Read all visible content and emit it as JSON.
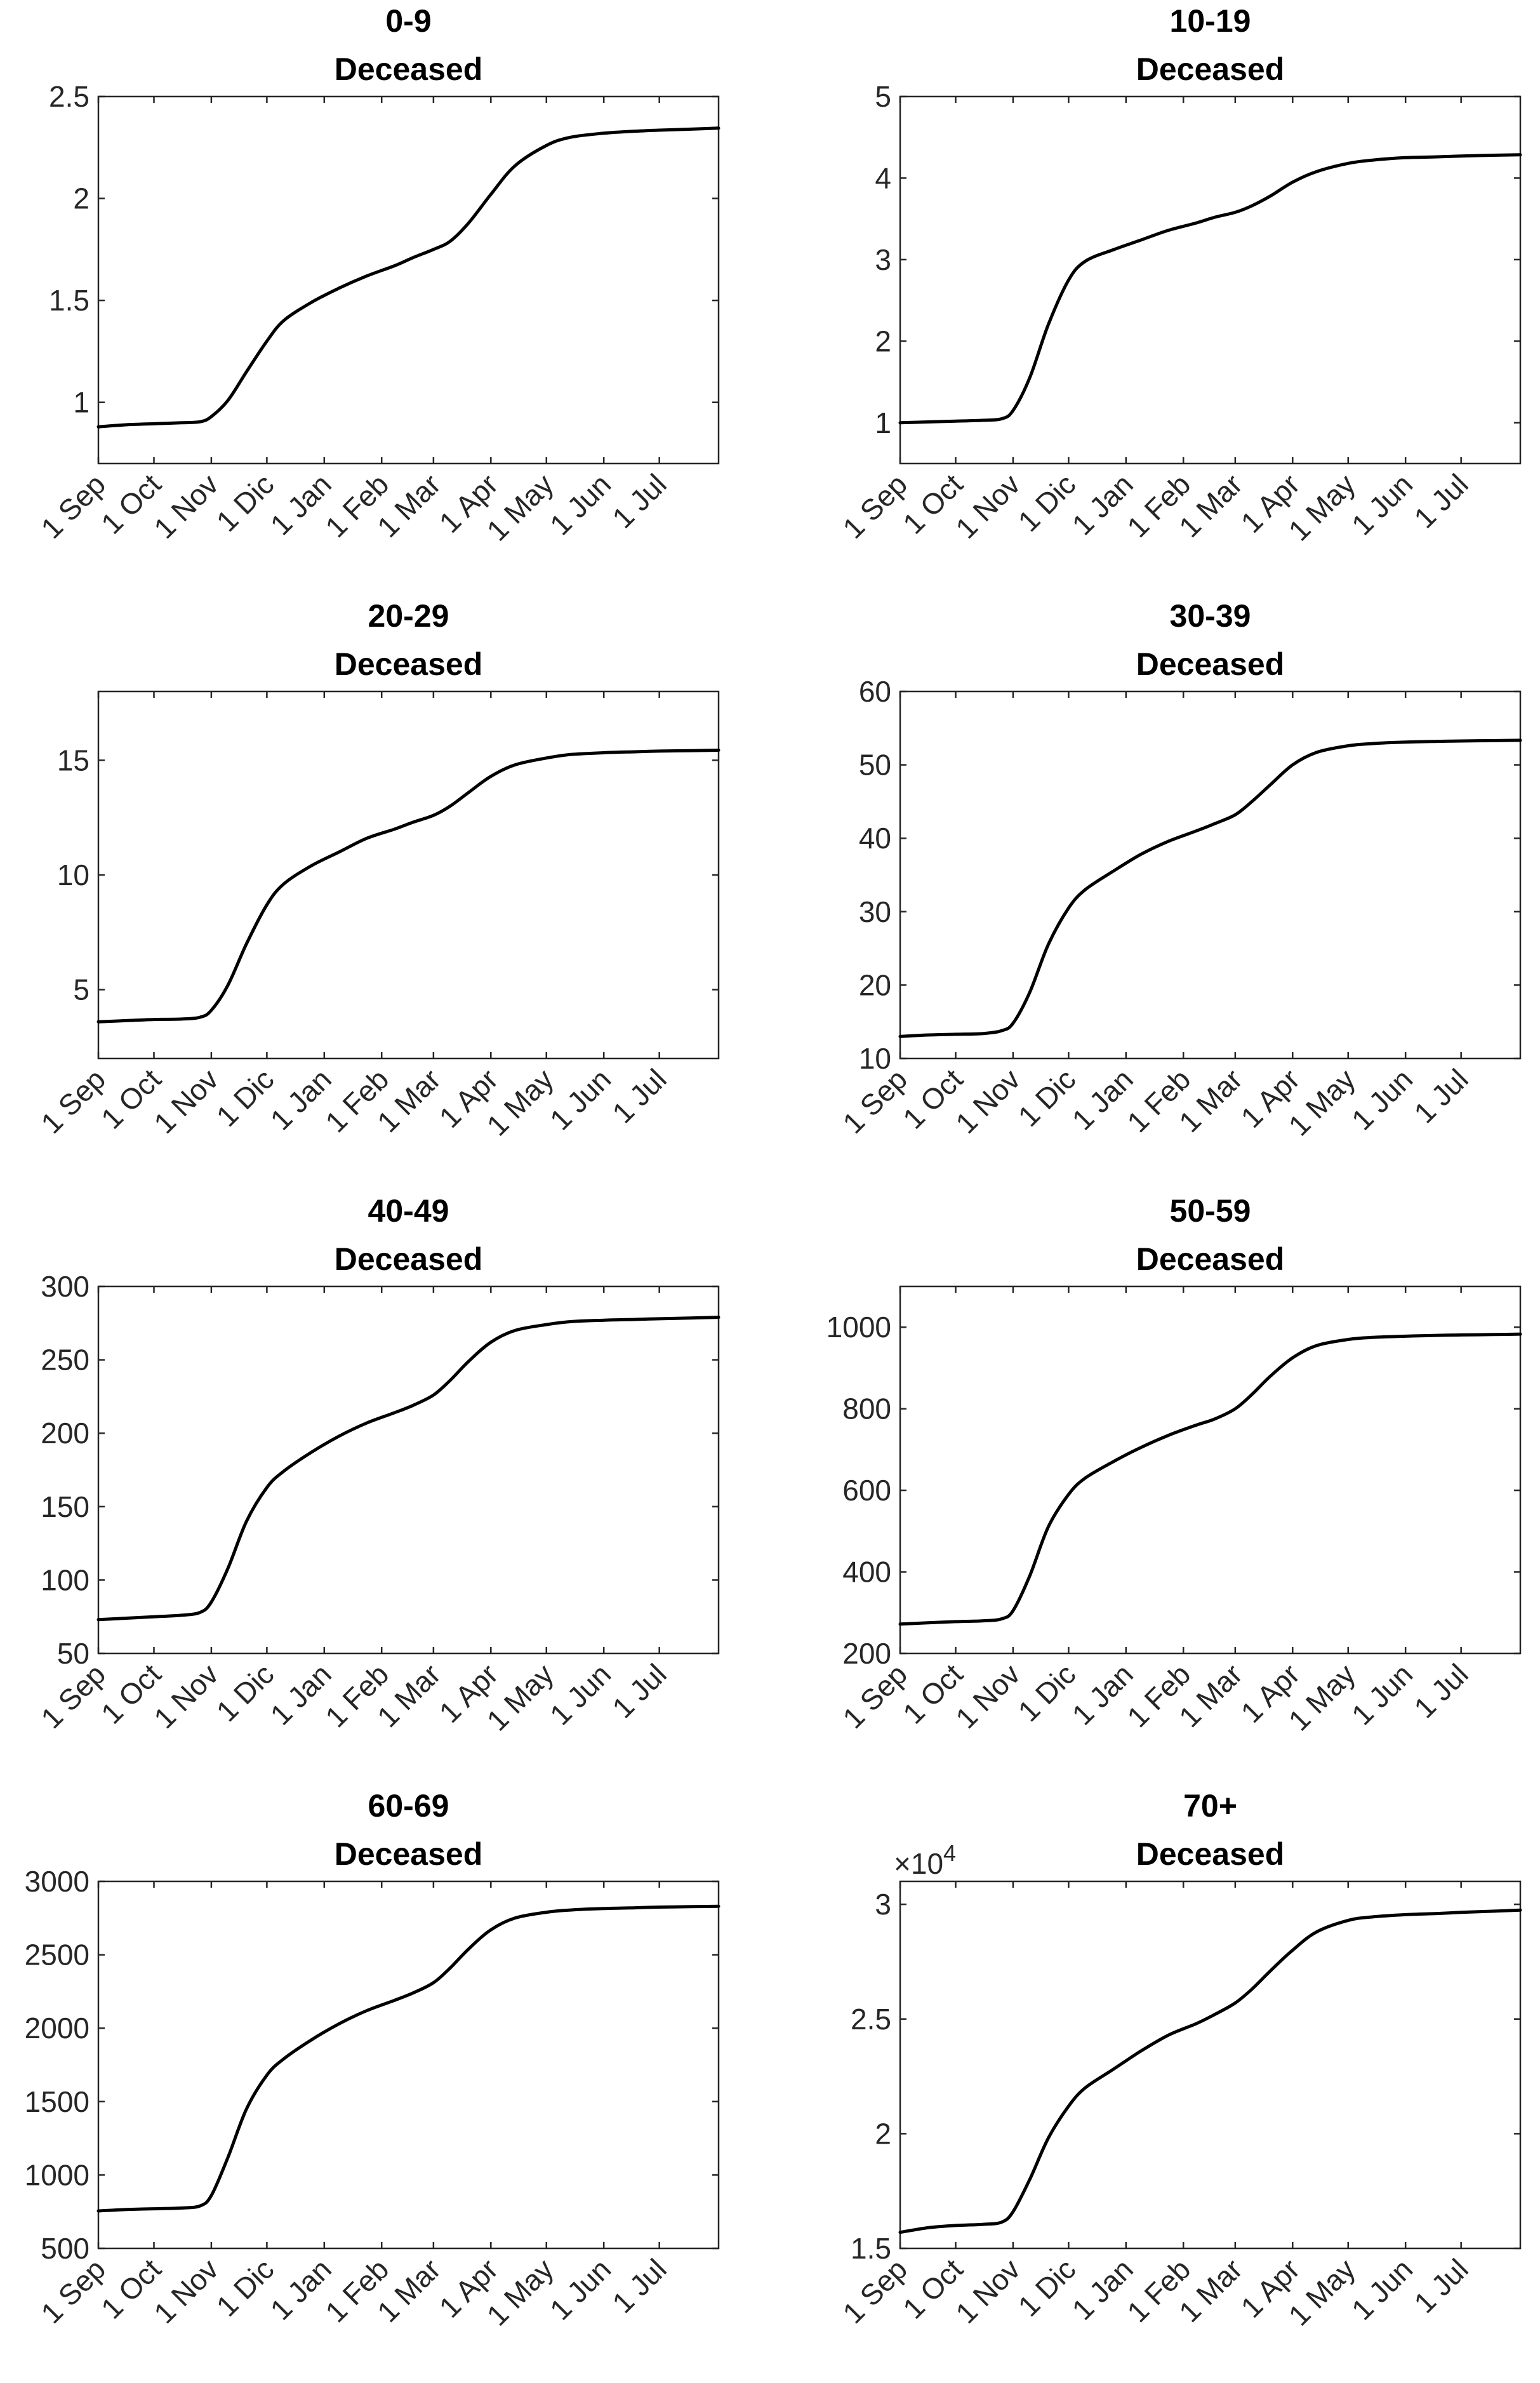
{
  "chart_data": [
    {
      "type": "line",
      "title": [
        "0-9",
        "Deceased"
      ],
      "x_tick_labels": [
        "1 Sep",
        "1 Oct",
        "1 Nov",
        "1 Dic",
        "1 Jan",
        "1 Feb",
        "1 Mar",
        "1 Apr",
        "1 May",
        "1 Jun",
        "1 Jul"
      ],
      "x_tick_days": [
        0,
        30,
        61,
        91,
        122,
        153,
        181,
        212,
        242,
        273,
        303
      ],
      "xlim": [
        0,
        335
      ],
      "ylim": [
        0.7,
        2.5
      ],
      "y_ticks": [
        1,
        1.5,
        2,
        2.5
      ],
      "y_tick_labels": [
        "1",
        "1.5",
        "2",
        "2.5"
      ],
      "exponent_label": "",
      "grid": true,
      "series": [
        {
          "name": "Deceased",
          "color": "#000000",
          "x": [
            0,
            15,
            30,
            45,
            55,
            61,
            70,
            80,
            91,
            100,
            115,
            130,
            145,
            160,
            170,
            181,
            190,
            200,
            212,
            225,
            242,
            255,
            273,
            290,
            303,
            320,
            335
          ],
          "y": [
            0.88,
            0.89,
            0.895,
            0.9,
            0.905,
            0.93,
            1.01,
            1.15,
            1.3,
            1.4,
            1.49,
            1.56,
            1.62,
            1.67,
            1.71,
            1.75,
            1.79,
            1.88,
            2.02,
            2.16,
            2.26,
            2.3,
            2.32,
            2.33,
            2.335,
            2.34,
            2.345
          ]
        }
      ]
    },
    {
      "type": "line",
      "title": [
        "10-19",
        "Deceased"
      ],
      "x_tick_labels": [
        "1 Sep",
        "1 Oct",
        "1 Nov",
        "1 Dic",
        "1 Jan",
        "1 Feb",
        "1 Mar",
        "1 Apr",
        "1 May",
        "1 Jun",
        "1 Jul"
      ],
      "x_tick_days": [
        0,
        30,
        61,
        91,
        122,
        153,
        181,
        212,
        242,
        273,
        303
      ],
      "xlim": [
        0,
        335
      ],
      "ylim": [
        0.5,
        5
      ],
      "y_ticks": [
        1,
        2,
        3,
        4,
        5
      ],
      "y_tick_labels": [
        "1",
        "2",
        "3",
        "4",
        "5"
      ],
      "exponent_label": "",
      "grid": true,
      "series": [
        {
          "name": "Deceased",
          "color": "#000000",
          "x": [
            0,
            15,
            30,
            45,
            55,
            61,
            70,
            80,
            91,
            100,
            115,
            130,
            145,
            160,
            170,
            181,
            190,
            200,
            212,
            225,
            242,
            255,
            273,
            290,
            303,
            320,
            335
          ],
          "y": [
            1.0,
            1.01,
            1.02,
            1.03,
            1.05,
            1.15,
            1.55,
            2.2,
            2.75,
            2.98,
            3.12,
            3.24,
            3.36,
            3.45,
            3.52,
            3.58,
            3.66,
            3.78,
            3.95,
            4.08,
            4.18,
            4.22,
            4.25,
            4.26,
            4.27,
            4.28,
            4.285
          ]
        }
      ]
    },
    {
      "type": "line",
      "title": [
        "20-29",
        "Deceased"
      ],
      "x_tick_labels": [
        "1 Sep",
        "1 Oct",
        "1 Nov",
        "1 Dic",
        "1 Jan",
        "1 Feb",
        "1 Mar",
        "1 Apr",
        "1 May",
        "1 Jun",
        "1 Jul"
      ],
      "x_tick_days": [
        0,
        30,
        61,
        91,
        122,
        153,
        181,
        212,
        242,
        273,
        303
      ],
      "xlim": [
        0,
        335
      ],
      "ylim": [
        2,
        18
      ],
      "y_ticks": [
        5,
        10,
        15
      ],
      "y_tick_labels": [
        "5",
        "10",
        "15"
      ],
      "exponent_label": "",
      "grid": true,
      "series": [
        {
          "name": "Deceased",
          "color": "#000000",
          "x": [
            0,
            15,
            30,
            45,
            55,
            61,
            70,
            80,
            91,
            100,
            115,
            130,
            145,
            160,
            170,
            181,
            190,
            200,
            212,
            225,
            242,
            255,
            273,
            290,
            303,
            320,
            335
          ],
          "y": [
            3.6,
            3.65,
            3.7,
            3.72,
            3.8,
            4.1,
            5.2,
            7.0,
            8.7,
            9.6,
            10.4,
            11.0,
            11.6,
            12.0,
            12.3,
            12.6,
            13.0,
            13.6,
            14.3,
            14.8,
            15.1,
            15.25,
            15.33,
            15.37,
            15.4,
            15.42,
            15.44
          ]
        }
      ]
    },
    {
      "type": "line",
      "title": [
        "30-39",
        "Deceased"
      ],
      "x_tick_labels": [
        "1 Sep",
        "1 Oct",
        "1 Nov",
        "1 Dic",
        "1 Jan",
        "1 Feb",
        "1 Mar",
        "1 Apr",
        "1 May",
        "1 Jun",
        "1 Jul"
      ],
      "x_tick_days": [
        0,
        30,
        61,
        91,
        122,
        153,
        181,
        212,
        242,
        273,
        303
      ],
      "xlim": [
        0,
        335
      ],
      "ylim": [
        10,
        60
      ],
      "y_ticks": [
        10,
        20,
        30,
        40,
        50,
        60
      ],
      "y_tick_labels": [
        "10",
        "20",
        "30",
        "40",
        "50",
        "60"
      ],
      "exponent_label": "",
      "grid": true,
      "series": [
        {
          "name": "Deceased",
          "color": "#000000",
          "x": [
            0,
            15,
            30,
            45,
            55,
            61,
            70,
            80,
            91,
            100,
            115,
            130,
            145,
            160,
            170,
            181,
            190,
            200,
            212,
            225,
            242,
            255,
            273,
            290,
            303,
            320,
            335
          ],
          "y": [
            13.0,
            13.2,
            13.3,
            13.4,
            13.8,
            14.8,
            19.0,
            25.5,
            30.5,
            33.0,
            35.5,
            37.8,
            39.6,
            41.0,
            42.0,
            43.2,
            45.0,
            47.3,
            50.0,
            51.7,
            52.6,
            52.9,
            53.1,
            53.2,
            53.25,
            53.3,
            53.35
          ]
        }
      ]
    },
    {
      "type": "line",
      "title": [
        "40-49",
        "Deceased"
      ],
      "x_tick_labels": [
        "1 Sep",
        "1 Oct",
        "1 Nov",
        "1 Dic",
        "1 Jan",
        "1 Feb",
        "1 Mar",
        "1 Apr",
        "1 May",
        "1 Jun",
        "1 Jul"
      ],
      "x_tick_days": [
        0,
        30,
        61,
        91,
        122,
        153,
        181,
        212,
        242,
        273,
        303
      ],
      "xlim": [
        0,
        335
      ],
      "ylim": [
        50,
        300
      ],
      "y_ticks": [
        50,
        100,
        150,
        200,
        250,
        300
      ],
      "y_tick_labels": [
        "50",
        "100",
        "150",
        "200",
        "250",
        "300"
      ],
      "exponent_label": "",
      "grid": true,
      "series": [
        {
          "name": "Deceased",
          "color": "#000000",
          "x": [
            0,
            15,
            30,
            45,
            55,
            61,
            70,
            80,
            91,
            100,
            115,
            130,
            145,
            160,
            170,
            181,
            190,
            200,
            212,
            225,
            242,
            255,
            273,
            290,
            303,
            320,
            335
          ],
          "y": [
            73,
            74,
            75,
            76,
            78,
            85,
            108,
            140,
            163,
            174,
            187,
            198,
            207,
            214,
            219,
            226,
            236,
            249,
            262,
            270,
            274,
            276,
            277,
            277.5,
            278,
            278.5,
            279
          ]
        }
      ]
    },
    {
      "type": "line",
      "title": [
        "50-59",
        "Deceased"
      ],
      "x_tick_labels": [
        "1 Sep",
        "1 Oct",
        "1 Nov",
        "1 Dic",
        "1 Jan",
        "1 Feb",
        "1 Mar",
        "1 Apr",
        "1 May",
        "1 Jun",
        "1 Jul"
      ],
      "x_tick_days": [
        0,
        30,
        61,
        91,
        122,
        153,
        181,
        212,
        242,
        273,
        303
      ],
      "xlim": [
        0,
        335
      ],
      "ylim": [
        200,
        1100
      ],
      "y_ticks": [
        200,
        400,
        600,
        800,
        1000
      ],
      "y_tick_labels": [
        "200",
        "400",
        "600",
        "800",
        "1000"
      ],
      "exponent_label": "",
      "grid": true,
      "series": [
        {
          "name": "Deceased",
          "color": "#000000",
          "x": [
            0,
            15,
            30,
            45,
            55,
            61,
            70,
            80,
            91,
            100,
            115,
            130,
            145,
            160,
            170,
            181,
            190,
            200,
            212,
            225,
            242,
            255,
            273,
            290,
            303,
            320,
            335
          ],
          "y": [
            272,
            275,
            278,
            280,
            285,
            305,
            390,
            510,
            590,
            630,
            670,
            705,
            735,
            760,
            775,
            800,
            835,
            880,
            925,
            955,
            970,
            975,
            978,
            980,
            981,
            982,
            983
          ]
        }
      ]
    },
    {
      "type": "line",
      "title": [
        "60-69",
        "Deceased"
      ],
      "x_tick_labels": [
        "1 Sep",
        "1 Oct",
        "1 Nov",
        "1 Dic",
        "1 Jan",
        "1 Feb",
        "1 Mar",
        "1 Apr",
        "1 May",
        "1 Jun",
        "1 Jul"
      ],
      "x_tick_days": [
        0,
        30,
        61,
        91,
        122,
        153,
        181,
        212,
        242,
        273,
        303
      ],
      "xlim": [
        0,
        335
      ],
      "ylim": [
        500,
        3000
      ],
      "y_ticks": [
        500,
        1000,
        1500,
        2000,
        2500,
        3000
      ],
      "y_tick_labels": [
        "500",
        "1000",
        "1500",
        "2000",
        "2500",
        "3000"
      ],
      "exponent_label": "",
      "grid": true,
      "series": [
        {
          "name": "Deceased",
          "color": "#000000",
          "x": [
            0,
            15,
            30,
            45,
            55,
            61,
            70,
            80,
            91,
            100,
            115,
            130,
            145,
            160,
            170,
            181,
            190,
            200,
            212,
            225,
            242,
            255,
            273,
            290,
            303,
            320,
            335
          ],
          "y": [
            755,
            765,
            770,
            775,
            790,
            860,
            1120,
            1450,
            1680,
            1790,
            1920,
            2030,
            2120,
            2190,
            2240,
            2310,
            2410,
            2540,
            2670,
            2750,
            2790,
            2805,
            2815,
            2820,
            2825,
            2828,
            2830
          ]
        }
      ]
    },
    {
      "type": "line",
      "title": [
        "70+",
        "Deceased"
      ],
      "x_tick_labels": [
        "1 Sep",
        "1 Oct",
        "1 Nov",
        "1 Dic",
        "1 Jan",
        "1 Feb",
        "1 Mar",
        "1 Apr",
        "1 May",
        "1 Jun",
        "1 Jul"
      ],
      "x_tick_days": [
        0,
        30,
        61,
        91,
        122,
        153,
        181,
        212,
        242,
        273,
        303
      ],
      "xlim": [
        0,
        335
      ],
      "ylim": [
        1.5,
        3.1
      ],
      "y_ticks": [
        1.5,
        2,
        2.5,
        3
      ],
      "y_tick_labels": [
        "1.5",
        "2",
        "2.5",
        "3"
      ],
      "exponent_label": "×10",
      "exponent_power": "4",
      "grid": true,
      "series": [
        {
          "name": "Deceased",
          "color": "#000000",
          "x": [
            0,
            15,
            30,
            45,
            55,
            61,
            70,
            80,
            91,
            100,
            115,
            130,
            145,
            160,
            170,
            181,
            190,
            200,
            212,
            225,
            242,
            255,
            273,
            290,
            303,
            320,
            335
          ],
          "y": [
            1.57,
            1.59,
            1.6,
            1.605,
            1.615,
            1.66,
            1.8,
            1.98,
            2.12,
            2.2,
            2.28,
            2.36,
            2.43,
            2.48,
            2.52,
            2.57,
            2.63,
            2.71,
            2.8,
            2.88,
            2.93,
            2.945,
            2.955,
            2.96,
            2.965,
            2.97,
            2.975
          ]
        }
      ]
    }
  ]
}
